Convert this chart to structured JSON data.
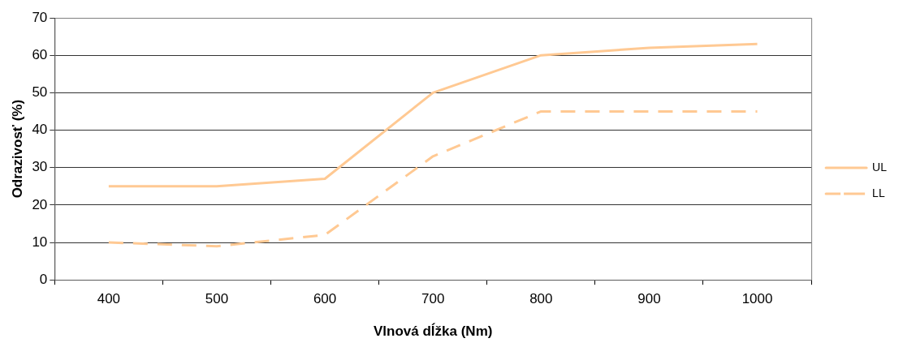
{
  "chart_data": {
    "type": "line",
    "xlabel": "Vlnová dĺžka (Nm)",
    "ylabel": "Odrazivosť (%)",
    "categories": [
      "400",
      "500",
      "600",
      "700",
      "800",
      "900",
      "1000"
    ],
    "series": [
      {
        "name": "UL",
        "color": "#ffc993",
        "line_style": "solid",
        "values": [
          25,
          25,
          27,
          50,
          60,
          62,
          63
        ]
      },
      {
        "name": "LL",
        "color": "#ffc993",
        "line_style": "dashed",
        "values": [
          10,
          9,
          12,
          33,
          45,
          45,
          45
        ]
      }
    ],
    "ylim": [
      0,
      70
    ],
    "yticks": [
      0,
      10,
      20,
      30,
      40,
      50,
      60,
      70
    ],
    "grid": "y",
    "legend": "right",
    "marker": "none"
  }
}
